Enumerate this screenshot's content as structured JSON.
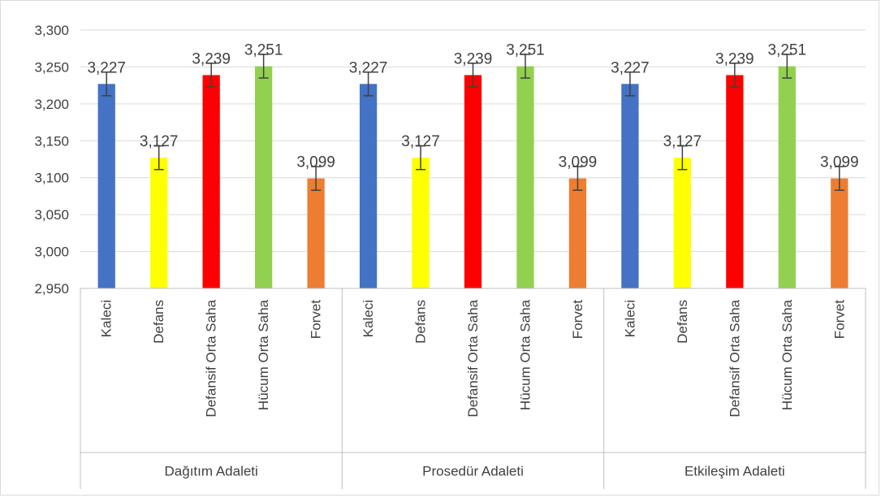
{
  "chart_data": {
    "type": "bar",
    "groups": [
      "Dağıtım Adaleti",
      "Prosedür Adaleti",
      "Etkileşim Adaleti"
    ],
    "categories": [
      "Kaleci",
      "Defans",
      "Defansif Orta Saha",
      "Hücum Orta Saha",
      "Forvet"
    ],
    "values": [
      [
        3.227,
        3.127,
        3.239,
        3.251,
        3.099
      ],
      [
        3.227,
        3.127,
        3.239,
        3.251,
        3.099
      ],
      [
        3.227,
        3.127,
        3.239,
        3.251,
        3.099
      ]
    ],
    "value_labels": [
      [
        "3,227",
        "3,127",
        "3,239",
        "3,251",
        "3,099"
      ],
      [
        "3,227",
        "3,127",
        "3,239",
        "3,251",
        "3,099"
      ],
      [
        "3,227",
        "3,127",
        "3,239",
        "3,251",
        "3,099"
      ]
    ],
    "error": 0.016,
    "colors": [
      "#4472c4",
      "#ffff00",
      "#ff0000",
      "#92d050",
      "#ed7d31"
    ],
    "ylim": [
      2.95,
      3.3
    ],
    "yticks": [
      2.95,
      3.0,
      3.05,
      3.1,
      3.15,
      3.2,
      3.25,
      3.3
    ],
    "ytick_labels": [
      "2,950",
      "3,000",
      "3,050",
      "3,100",
      "3,150",
      "3,200",
      "3,250",
      "3,300"
    ],
    "grid": true,
    "title": "",
    "xlabel": "",
    "ylabel": ""
  }
}
